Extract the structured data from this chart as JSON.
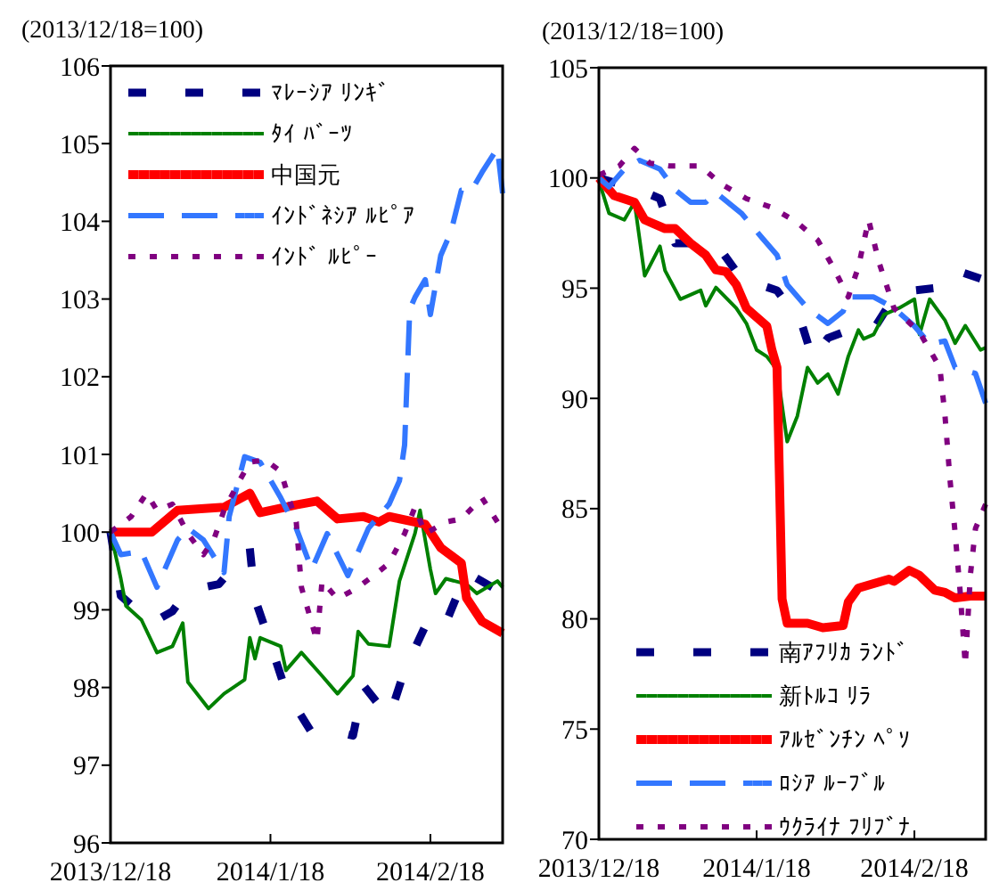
{
  "chart_data": [
    {
      "type": "line",
      "ylabel": "(2013/12/18=100)",
      "xlim": [
        "2013-12-18",
        "2014-03-04"
      ],
      "ylim": [
        96,
        106
      ],
      "yticks": [
        96,
        97,
        98,
        99,
        100,
        101,
        102,
        103,
        104,
        105,
        106
      ],
      "xticks": [
        {
          "value": "2013-12-18",
          "label": "2013/12/18"
        },
        {
          "value": "2014-01-18",
          "label": "2014/1/18"
        },
        {
          "value": "2014-02-18",
          "label": "2014/2/18"
        }
      ],
      "grid": false,
      "legend": "top left",
      "series": [
        {
          "name": "ﾏﾚｰｼｱ ﾘﾝｷﾞ",
          "color": "#000080",
          "line_style": "dashed",
          "x": [
            "2013-12-18",
            "2013-12-20",
            "2013-12-26",
            "2013-12-30",
            "2014-01-02",
            "2014-01-08",
            "2014-01-14",
            "2014-01-15",
            "2014-01-18",
            "2014-01-21",
            "2014-01-26",
            "2014-01-29",
            "2014-02-03",
            "2014-02-05",
            "2014-02-10",
            "2014-02-13",
            "2014-02-17",
            "2014-02-20",
            "2014-02-21",
            "2014-02-25",
            "2014-03-02"
          ],
          "values": [
            100,
            99.18,
            98.83,
            98.98,
            99.25,
            99.33,
            99.79,
            99.14,
            98.56,
            97.95,
            97.42,
            97.46,
            97.38,
            98.03,
            97.61,
            98.22,
            98.79,
            98.68,
            98.83,
            99.48,
            99.29
          ]
        },
        {
          "name": "ﾀｲ ﾊﾞｰﾂ",
          "color": "#008000",
          "line_style": "solid",
          "x": [
            "2013-12-18",
            "2013-12-20",
            "2013-12-21",
            "2013-12-24",
            "2013-12-27",
            "2013-12-30",
            "2014-01-01",
            "2014-01-02",
            "2014-01-06",
            "2014-01-09",
            "2014-01-13",
            "2014-01-14",
            "2014-01-15",
            "2014-01-16",
            "2014-01-20",
            "2014-01-21",
            "2014-01-24",
            "2014-01-28",
            "2014-01-31",
            "2014-02-03",
            "2014-02-04",
            "2014-02-06",
            "2014-02-10",
            "2014-02-12",
            "2014-02-15",
            "2014-02-16",
            "2014-02-18",
            "2014-02-19",
            "2014-02-21",
            "2014-02-25",
            "2014-02-27",
            "2014-03-03",
            "2014-03-04"
          ],
          "values": [
            100,
            99.4,
            99.05,
            98.87,
            98.45,
            98.53,
            98.83,
            98.07,
            97.73,
            97.92,
            98.1,
            98.64,
            98.37,
            98.64,
            98.53,
            98.22,
            98.45,
            98.15,
            97.92,
            98.15,
            98.72,
            98.56,
            98.53,
            99.37,
            99.98,
            100.28,
            99.52,
            99.21,
            99.4,
            99.33,
            99.21,
            99.37,
            99.29
          ]
        },
        {
          "name": "中国元",
          "color": "#ff0000",
          "line_style": "solid",
          "x": [
            "2013-12-18",
            "2013-12-26",
            "2013-12-31",
            "2014-01-09",
            "2014-01-14",
            "2014-01-16",
            "2014-01-23",
            "2014-01-27",
            "2014-01-31",
            "2014-02-05",
            "2014-02-08",
            "2014-02-10",
            "2014-02-17",
            "2014-02-20",
            "2014-02-24",
            "2014-02-25",
            "2014-02-28",
            "2014-03-04"
          ],
          "values": [
            100,
            100,
            100.28,
            100.32,
            100.5,
            100.25,
            100.35,
            100.4,
            100.17,
            100.2,
            100.13,
            100.2,
            100.1,
            99.8,
            99.6,
            99.15,
            98.85,
            98.7
          ]
        },
        {
          "name": "ｲﾝﾄﾞﾈｼｱ ﾙﾋﾟｱ",
          "color": "#3377ff",
          "line_style": "dashed",
          "x": [
            "2013-12-18",
            "2013-12-20",
            "2013-12-24",
            "2013-12-27",
            "2013-12-31",
            "2014-01-02",
            "2014-01-05",
            "2014-01-09",
            "2014-01-10",
            "2014-01-13",
            "2014-01-16",
            "2014-01-20",
            "2014-01-23",
            "2014-01-26",
            "2014-01-29",
            "2014-02-02",
            "2014-02-06",
            "2014-02-10",
            "2014-02-12",
            "2014-02-13",
            "2014-02-14",
            "2014-02-15",
            "2014-02-17",
            "2014-02-18",
            "2014-02-20",
            "2014-02-22",
            "2014-02-24",
            "2014-02-26",
            "2014-02-28",
            "2014-03-03",
            "2014-03-04"
          ],
          "values": [
            100,
            99.71,
            99.75,
            99.29,
            99.9,
            100.05,
            99.9,
            99.48,
            100.2,
            100.97,
            100.9,
            100.44,
            100.05,
            99.52,
            99.98,
            99.44,
            100.05,
            100.36,
            100.66,
            101.12,
            102.87,
            103.02,
            103.25,
            102.8,
            103.56,
            103.87,
            104.4,
            104.4,
            104.63,
            104.94,
            104.36
          ]
        },
        {
          "name": "ｲﾝﾄﾞ ﾙﾋﾟｰ",
          "color": "#800080",
          "line_style": "dotted",
          "x": [
            "2013-12-18",
            "2013-12-22",
            "2013-12-25",
            "2013-12-27",
            "2013-12-30",
            "2014-01-02",
            "2014-01-05",
            "2014-01-07",
            "2014-01-09",
            "2014-01-12",
            "2014-01-14",
            "2014-01-17",
            "2014-01-20",
            "2014-01-23",
            "2014-01-24",
            "2014-01-27",
            "2014-01-28",
            "2014-01-31",
            "2014-02-04",
            "2014-02-07",
            "2014-02-10",
            "2014-02-13",
            "2014-02-15",
            "2014-02-17",
            "2014-02-21",
            "2014-02-24",
            "2014-02-28",
            "2014-03-03"
          ],
          "values": [
            100,
            100.2,
            100.5,
            100.28,
            100.36,
            99.98,
            99.71,
            99.9,
            100.28,
            100.66,
            100.9,
            100.93,
            100.78,
            100.13,
            99.29,
            98.6,
            99.37,
            99.14,
            99.29,
            99.44,
            99.6,
            99.98,
            100.32,
            99.98,
            100.13,
            100.17,
            100.44,
            100.13
          ]
        }
      ]
    },
    {
      "type": "line",
      "ylabel": "(2013/12/18=100)",
      "xlim": [
        "2013-12-18",
        "2014-03-04"
      ],
      "ylim": [
        70,
        105
      ],
      "yticks": [
        70,
        75,
        80,
        85,
        90,
        95,
        100,
        105
      ],
      "xticks": [
        {
          "value": "2013-12-18",
          "label": "2013/12/18"
        },
        {
          "value": "2014-01-18",
          "label": "2014/1/18"
        },
        {
          "value": "2014-02-18",
          "label": "2014/2/18"
        }
      ],
      "grid": false,
      "legend": "bottom left",
      "series": [
        {
          "name": "南ｱﾌﾘｶ ﾗﾝﾄﾞ",
          "color": "#000080",
          "line_style": "dashed",
          "x": [
            "2013-12-18",
            "2013-12-26",
            "2013-12-30",
            "2014-01-02",
            "2014-01-06",
            "2014-01-10",
            "2014-01-15",
            "2014-01-22",
            "2014-01-27",
            "2014-01-29",
            "2014-02-01",
            "2014-02-04",
            "2014-02-10",
            "2014-02-14",
            "2014-02-18",
            "2014-02-22",
            "2014-02-26",
            "2014-03-03"
          ],
          "values": [
            100,
            99.46,
            99.06,
            97.04,
            97.04,
            97.04,
            95.43,
            94.9,
            93.28,
            91.8,
            92.74,
            93,
            93.14,
            94.6,
            94.9,
            95,
            95.83,
            95.43
          ]
        },
        {
          "name": "新ﾄﾙｺ ﾘﾗ",
          "color": "#008000",
          "line_style": "solid",
          "x": [
            "2013-12-18",
            "2013-12-20",
            "2013-12-23",
            "2013-12-25",
            "2013-12-27",
            "2013-12-30",
            "2013-12-31",
            "2014-01-03",
            "2014-01-07",
            "2014-01-08",
            "2014-01-10",
            "2014-01-14",
            "2014-01-16",
            "2014-01-18",
            "2014-01-20",
            "2014-01-22",
            "2014-01-24",
            "2014-01-26",
            "2014-01-28",
            "2014-01-30",
            "2014-02-01",
            "2014-02-03",
            "2014-02-05",
            "2014-02-07",
            "2014-02-08",
            "2014-02-10",
            "2014-02-12",
            "2014-02-15",
            "2014-02-18",
            "2014-02-19",
            "2014-02-21",
            "2014-02-24",
            "2014-02-26",
            "2014-02-28",
            "2014-03-03",
            "2014-03-04"
          ],
          "values": [
            99.87,
            98.4,
            98.1,
            98.9,
            95.56,
            96.9,
            95.8,
            94.5,
            94.9,
            94.2,
            95.03,
            94.09,
            93.4,
            92.2,
            91.9,
            91.3,
            88.04,
            89.2,
            91.4,
            90.7,
            91.1,
            90.2,
            91.9,
            93.1,
            92.7,
            92.9,
            93.8,
            94.1,
            94.5,
            92.9,
            94.5,
            93.55,
            92.5,
            93.3,
            92.2,
            92.3
          ]
        },
        {
          "name": "ｱﾙｾﾞﾝﾁﾝ ﾍﾟｿ",
          "color": "#ff0000",
          "line_style": "solid",
          "x": [
            "2013-12-18",
            "2013-12-21",
            "2013-12-25",
            "2013-12-27",
            "2013-12-31",
            "2014-01-02",
            "2014-01-05",
            "2014-01-08",
            "2014-01-10",
            "2014-01-12",
            "2014-01-14",
            "2014-01-16",
            "2014-01-18",
            "2014-01-20",
            "2014-01-21",
            "2014-01-22",
            "2014-01-23",
            "2014-01-24",
            "2014-01-28",
            "2014-01-31",
            "2014-02-04",
            "2014-02-05",
            "2014-02-07",
            "2014-02-10",
            "2014-02-13",
            "2014-02-14",
            "2014-02-17",
            "2014-02-19",
            "2014-02-22",
            "2014-02-24",
            "2014-02-26",
            "2014-03-01",
            "2014-03-04"
          ],
          "values": [
            100,
            99.2,
            98.9,
            98.1,
            97.7,
            97.7,
            97.04,
            96.5,
            95.83,
            95.75,
            95.16,
            94.09,
            93.68,
            93.28,
            92.2,
            91.4,
            80.9,
            79.8,
            79.8,
            79.6,
            79.7,
            80.76,
            81.4,
            81.6,
            81.8,
            81.7,
            82.2,
            81.97,
            81.3,
            81.2,
            80.95,
            81.03,
            81.03
          ]
        },
        {
          "name": "ﾛｼｱ ﾙｰﾌﾞﾙ",
          "color": "#3377ff",
          "line_style": "dashed",
          "x": [
            "2013-12-18",
            "2013-12-20",
            "2013-12-23",
            "2013-12-26",
            "2013-12-30",
            "2014-01-02",
            "2014-01-05",
            "2014-01-08",
            "2014-01-10",
            "2014-01-15",
            "2014-01-19",
            "2014-01-22",
            "2014-01-24",
            "2014-01-28",
            "2014-02-01",
            "2014-02-04",
            "2014-02-05",
            "2014-02-10",
            "2014-02-14",
            "2014-02-18",
            "2014-02-21",
            "2014-02-24",
            "2014-02-26",
            "2014-03-02",
            "2014-03-04"
          ],
          "values": [
            100,
            99.6,
            100.4,
            100.8,
            100.4,
            99.46,
            98.9,
            98.9,
            99.33,
            98.4,
            97.3,
            96.5,
            95.16,
            94.09,
            93.4,
            93.95,
            94.6,
            94.6,
            94.09,
            93.28,
            92.47,
            92.6,
            91.4,
            91.13,
            89.78
          ]
        },
        {
          "name": "ｳｸﾗｲﾅ ﾌﾘﾌﾞﾅ",
          "color": "#800080",
          "line_style": "dotted",
          "x": [
            "2013-12-18",
            "2013-12-22",
            "2013-12-25",
            "2013-12-28",
            "2014-01-01",
            "2014-01-07",
            "2014-01-11",
            "2014-01-16",
            "2014-01-21",
            "2014-01-26",
            "2014-01-30",
            "2014-02-02",
            "2014-02-05",
            "2014-02-07",
            "2014-02-09",
            "2014-02-11",
            "2014-02-14",
            "2014-02-19",
            "2014-02-23",
            "2014-02-24",
            "2014-02-25",
            "2014-02-26",
            "2014-02-27",
            "2014-02-28",
            "2014-03-01",
            "2014-03-02",
            "2014-03-04"
          ],
          "values": [
            100.13,
            100.54,
            101.34,
            100.67,
            100.54,
            100.54,
            99.73,
            99.06,
            98.66,
            97.98,
            97.18,
            95.97,
            94.6,
            95.97,
            98.1,
            96.2,
            94.09,
            93,
            91.4,
            89.25,
            86.3,
            83.9,
            81.2,
            77.9,
            82,
            84.1,
            85.2
          ]
        }
      ]
    }
  ]
}
